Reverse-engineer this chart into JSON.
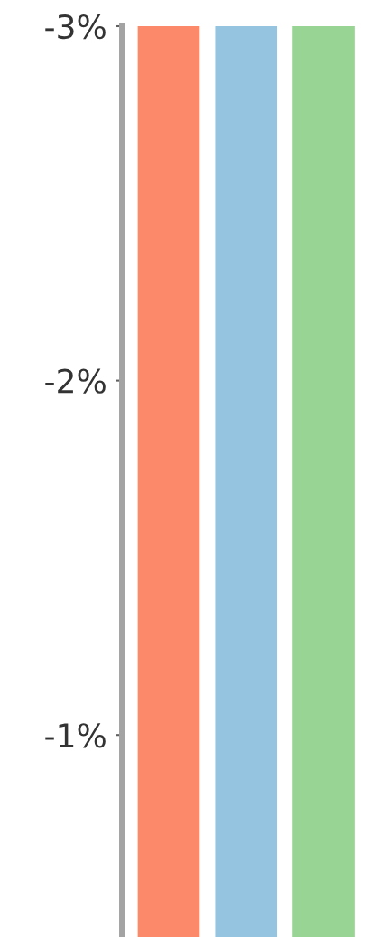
{
  "chart_data": {
    "type": "bar",
    "categories": [
      null,
      null,
      null
    ],
    "base": [
      -0.43,
      -0.43,
      -0.43
    ],
    "values": [
      -2.57,
      -2.57,
      -2.57
    ],
    "colors": [
      "#fc8a6a",
      "#94c4df",
      "#98d594"
    ],
    "ylim": [
      -0.43,
      -3
    ],
    "yticks": [
      {
        "value": -3,
        "label": "-3%"
      },
      {
        "value": -2,
        "label": "-2%"
      },
      {
        "value": -1,
        "label": "-1%"
      }
    ],
    "tick_labels": "y"
  }
}
